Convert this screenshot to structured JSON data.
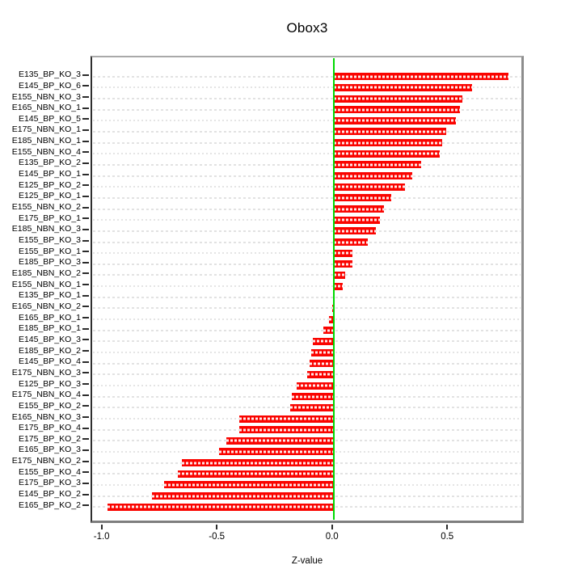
{
  "title": "Obox3",
  "chart_data": {
    "type": "bar",
    "orientation": "horizontal",
    "title": "Obox3",
    "xlabel": "Z-value",
    "ylabel": "",
    "xlim": [
      -1.04,
      0.83
    ],
    "x_ticks": [
      -1.0,
      -0.5,
      0.0,
      0.5
    ],
    "x_tick_labels": [
      "-1.0",
      "-0.5",
      "0.0",
      "0.5"
    ],
    "grid": true,
    "legend": "none",
    "zero_reference_line": 0.0,
    "categories": [
      "E135_BP_KO_3",
      "E145_BP_KO_6",
      "E155_NBN_KO_3",
      "E165_NBN_KO_1",
      "E145_BP_KO_5",
      "E175_NBN_KO_1",
      "E185_NBN_KO_1",
      "E155_NBN_KO_4",
      "E135_BP_KO_2",
      "E145_BP_KO_1",
      "E125_BP_KO_2",
      "E125_BP_KO_1",
      "E155_NBN_KO_2",
      "E175_BP_KO_1",
      "E185_NBN_KO_3",
      "E155_BP_KO_3",
      "E155_BP_KO_1",
      "E185_BP_KO_3",
      "E185_NBN_KO_2",
      "E155_NBN_KO_1",
      "E135_BP_KO_1",
      "E165_NBN_KO_2",
      "E165_BP_KO_1",
      "E185_BP_KO_1",
      "E145_BP_KO_3",
      "E185_BP_KO_2",
      "E145_BP_KO_4",
      "E175_NBN_KO_3",
      "E125_BP_KO_3",
      "E175_NBN_KO_4",
      "E155_BP_KO_2",
      "E165_NBN_KO_3",
      "E175_BP_KO_4",
      "E175_BP_KO_2",
      "E165_BP_KO_3",
      "E175_NBN_KO_2",
      "E155_BP_KO_4",
      "E175_BP_KO_3",
      "E145_BP_KO_2",
      "E165_BP_KO_2"
    ],
    "values": [
      0.76,
      0.6,
      0.56,
      0.55,
      0.53,
      0.49,
      0.47,
      0.46,
      0.38,
      0.34,
      0.31,
      0.25,
      0.22,
      0.2,
      0.185,
      0.15,
      0.083,
      0.081,
      0.051,
      0.039,
      0.005,
      -0.005,
      -0.02,
      -0.045,
      -0.09,
      -0.097,
      -0.103,
      -0.115,
      -0.16,
      -0.18,
      -0.19,
      -0.41,
      -0.41,
      -0.467,
      -0.497,
      -0.66,
      -0.675,
      -0.737,
      -0.79,
      -0.98
    ]
  },
  "colors": {
    "bar": "#fa0400",
    "bar_stripe": "#ffffff",
    "zero_line": "#00d800",
    "gridline": "#e2e2e2",
    "box_border": "#8d8d8d",
    "text": "#000000",
    "background": "#ffffff"
  }
}
